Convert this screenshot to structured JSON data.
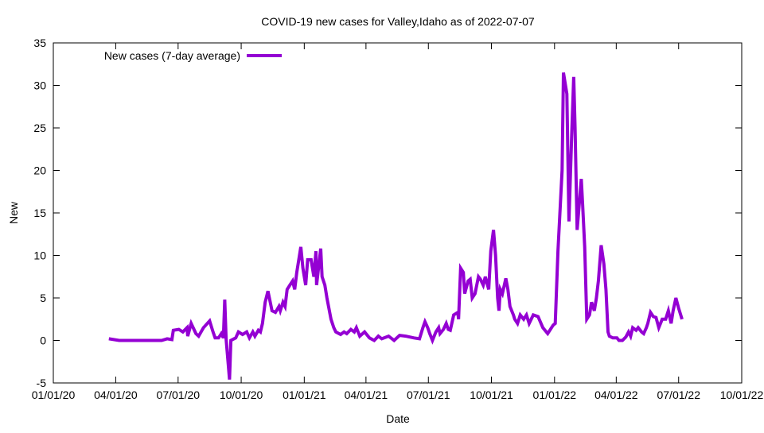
{
  "chart_data": {
    "type": "line",
    "title": "COVID-19 new cases for Valley,Idaho as of 2022-07-07",
    "xlabel": "Date",
    "ylabel": "New",
    "x_units": "days since 2020-01-01",
    "xlim": [
      0,
      1004
    ],
    "ylim": [
      -5,
      35
    ],
    "yticks": [
      -5,
      0,
      5,
      10,
      15,
      20,
      25,
      30,
      35
    ],
    "xticks": [
      {
        "day": 0,
        "label": "01/01/20"
      },
      {
        "day": 91,
        "label": "04/01/20"
      },
      {
        "day": 182,
        "label": "07/01/20"
      },
      {
        "day": 274,
        "label": "10/01/20"
      },
      {
        "day": 366,
        "label": "01/01/21"
      },
      {
        "day": 456,
        "label": "04/01/21"
      },
      {
        "day": 547,
        "label": "07/01/21"
      },
      {
        "day": 639,
        "label": "10/01/21"
      },
      {
        "day": 731,
        "label": "01/01/22"
      },
      {
        "day": 821,
        "label": "04/01/22"
      },
      {
        "day": 912,
        "label": "07/01/22"
      },
      {
        "day": 1004,
        "label": "10/01/22"
      }
    ],
    "legend": {
      "position": "top-left",
      "entries": [
        "New cases (7-day average)"
      ]
    },
    "grid": false,
    "series": [
      {
        "name": "New cases (7-day average)",
        "color": "#9400d3",
        "x": [
          81,
          96,
          158,
          166,
          173,
          175,
          183,
          189,
          195,
          196,
          201,
          208,
          212,
          219,
          228,
          233,
          236,
          241,
          245,
          248,
          250,
          252,
          257,
          259,
          266,
          270,
          276,
          282,
          286,
          291,
          294,
          299,
          302,
          305,
          309,
          313,
          319,
          324,
          329,
          331,
          335,
          338,
          341,
          345,
          349,
          352,
          355,
          361,
          364,
          368,
          371,
          376,
          380,
          383,
          384,
          390,
          392,
          396,
          399,
          405,
          409,
          412,
          419,
          424,
          428,
          434,
          439,
          442,
          447,
          454,
          461,
          468,
          474,
          479,
          489,
          497,
          505,
          514,
          526,
          534,
          539,
          542,
          546,
          549,
          553,
          558,
          562,
          564,
          569,
          573,
          576,
          579,
          584,
          590,
          591,
          594,
          598,
          600,
          605,
          608,
          611,
          615,
          620,
          623,
          627,
          630,
          635,
          638,
          642,
          645,
          648,
          650,
          652,
          655,
          660,
          663,
          666,
          671,
          673,
          677,
          681,
          686,
          690,
          694,
          700,
          707,
          714,
          721,
          729,
          732,
          736,
          742,
          744,
          749,
          752,
          756,
          759,
          761,
          764,
          770,
          772,
          775,
          778,
          782,
          785,
          789,
          792,
          795,
          799,
          803,
          806,
          809,
          811,
          816,
          822,
          825,
          830,
          835,
          839,
          842,
          845,
          850,
          853,
          858,
          861,
          865,
          867,
          871,
          875,
          879,
          883,
          888,
          893,
          897,
          901,
          904,
          908,
          912,
          917
        ],
        "y": [
          0.2,
          0,
          0,
          0.2,
          0.1,
          1.2,
          1.3,
          1.0,
          1.5,
          0.5,
          2.0,
          0.8,
          0.5,
          1.5,
          2.3,
          1.0,
          0.3,
          0.3,
          0.8,
          0.3,
          4.8,
          0.2,
          -4.6,
          0,
          0.3,
          1.0,
          0.7,
          1.0,
          0.3,
          1.0,
          0.5,
          1.2,
          1.0,
          2.0,
          4.5,
          5.8,
          3.5,
          3.3,
          4.0,
          3.5,
          4.5,
          4.0,
          6.0,
          6.5,
          7.0,
          6.0,
          8.0,
          11.0,
          8.5,
          6.5,
          9.5,
          9.5,
          7.5,
          10.5,
          6.5,
          10.8,
          7.5,
          6.5,
          5.0,
          2.5,
          1.5,
          1.0,
          0.7,
          1.0,
          0.8,
          1.3,
          1.0,
          1.5,
          0.5,
          1.0,
          0.3,
          0,
          0.5,
          0.2,
          0.5,
          0,
          0.6,
          0.5,
          0.3,
          0.2,
          1.5,
          2.2,
          1.5,
          0.8,
          0,
          1.0,
          1.5,
          0.8,
          1.3,
          2.0,
          1.3,
          1.2,
          3.0,
          3.3,
          2.5,
          8.5,
          8.0,
          5.5,
          7.0,
          7.2,
          5.0,
          5.5,
          7.5,
          7.2,
          6.5,
          7.5,
          6.0,
          10.5,
          13.0,
          10.0,
          5.0,
          3.5,
          6.0,
          5.5,
          7.3,
          6.0,
          4.0,
          3.0,
          2.5,
          2.0,
          3.0,
          2.5,
          3.0,
          2.0,
          3.0,
          2.8,
          1.5,
          0.8,
          1.8,
          2.0,
          10.5,
          20.0,
          31.5,
          29.0,
          14.0,
          24.0,
          31.0,
          25.0,
          13.0,
          19.0,
          16.0,
          11.0,
          2.5,
          3.0,
          4.5,
          3.5,
          5.0,
          7.0,
          11.2,
          9.0,
          6.0,
          1.0,
          0.5,
          0.3,
          0.3,
          0,
          0,
          0.4,
          1.0,
          0.5,
          1.5,
          1.2,
          1.5,
          1.0,
          0.8,
          1.5,
          2.0,
          3.3,
          2.8,
          2.7,
          1.5,
          2.5,
          2.5,
          3.5,
          2.0,
          3.5,
          5.0,
          3.8,
          2.5
        ]
      }
    ]
  }
}
